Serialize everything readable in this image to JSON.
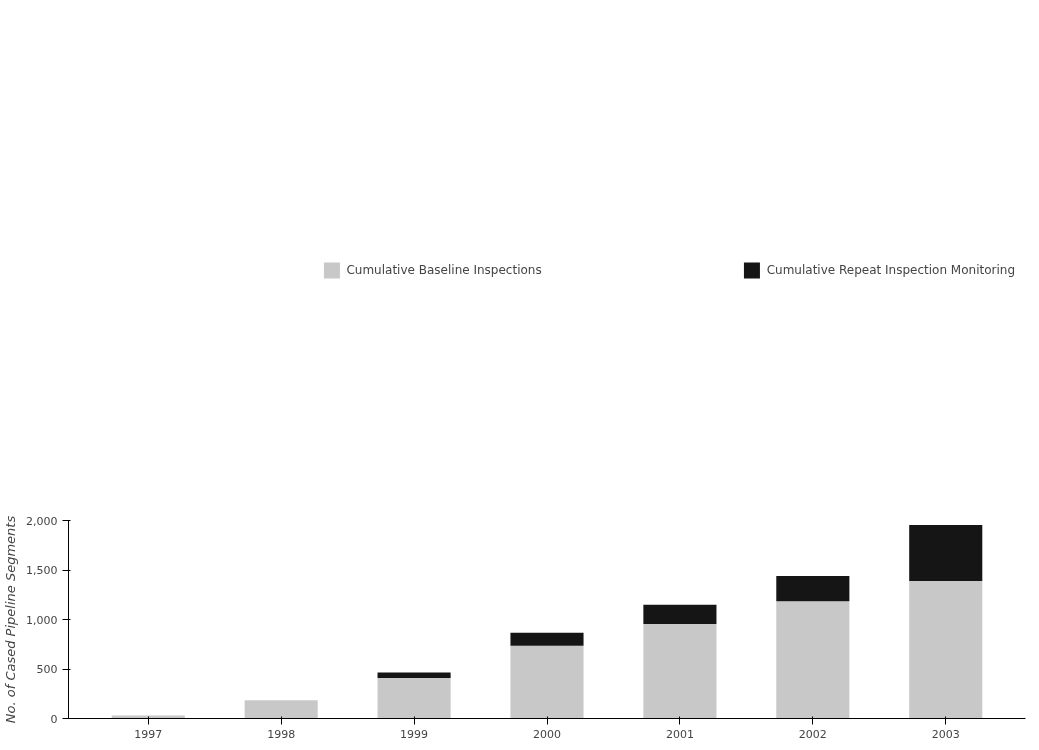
{
  "chart_data": {
    "type": "bar",
    "stacked": true,
    "ylabel": "No. of Cased Pipeline Segments",
    "categories": [
      "1997",
      "1998",
      "1999",
      "2000",
      "2001",
      "2002",
      "2003"
    ],
    "series": [
      {
        "name": "Cumulative Baseline Inspections",
        "color": "#c8c8c8",
        "values": [
          30,
          185,
          410,
          735,
          955,
          1185,
          1390
        ]
      },
      {
        "name": "Cumulative Repeat Inspection Monitoring",
        "color": "#151515",
        "values": [
          0,
          0,
          55,
          130,
          195,
          255,
          565
        ]
      }
    ],
    "ylim": [
      0,
      2000
    ],
    "yticks": [
      0,
      {
        "value": 500,
        "label": "500"
      },
      {
        "value": 1000,
        "label": "1,000"
      },
      {
        "value": 1500,
        "label": "1,500"
      },
      {
        "value": 2000,
        "label": "2,000"
      }
    ],
    "grid": false,
    "legend": "top"
  }
}
